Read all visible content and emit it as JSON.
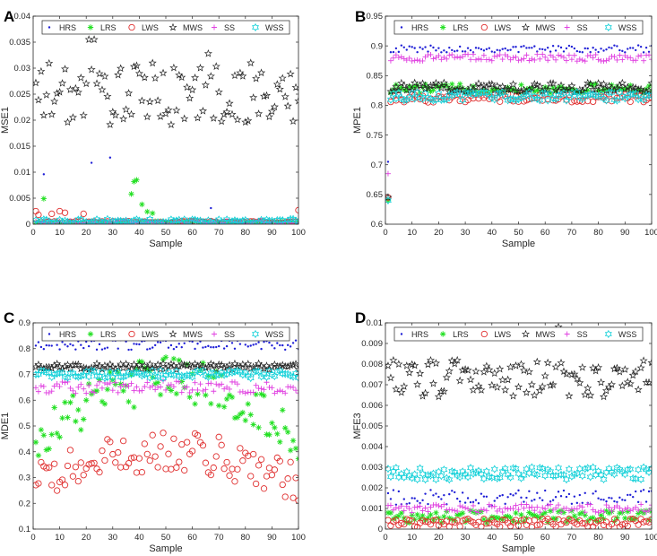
{
  "figure": {
    "panels": [
      "A",
      "B",
      "C",
      "D"
    ]
  },
  "legend_entries": [
    "HRS",
    "LRS",
    "LWS",
    "MWS",
    "SS",
    "WSS"
  ],
  "series_styles": {
    "HRS": {
      "color": "#1f1fd6",
      "marker": "dot"
    },
    "LRS": {
      "color": "#22e022",
      "marker": "asterisk"
    },
    "LWS": {
      "color": "#e03030",
      "marker": "circle"
    },
    "MWS": {
      "color": "#222222",
      "marker": "star"
    },
    "SS": {
      "color": "#e040e0",
      "marker": "plus"
    },
    "WSS": {
      "color": "#10d0d8",
      "marker": "hexagram"
    }
  },
  "chart_data": [
    {
      "panel": "A",
      "type": "scatter",
      "title": "",
      "xlabel": "Sample",
      "ylabel": "MSE1",
      "xlim": [
        0,
        100
      ],
      "ylim": [
        0,
        0.04
      ],
      "xticks": [
        0,
        10,
        20,
        30,
        40,
        50,
        60,
        70,
        80,
        90,
        100
      ],
      "yticks": [
        0,
        0.005,
        0.01,
        0.015,
        0.02,
        0.025,
        0.03,
        0.035,
        0.04
      ],
      "yticklabels": [
        "0",
        "0.005",
        "0.01",
        "0.015",
        "0.02",
        "0.025",
        "0.03",
        "0.035",
        "0.04"
      ],
      "series": [
        {
          "name": "HRS",
          "x_range": [
            1,
            100
          ],
          "base": 0.0003,
          "noise": 0.0003,
          "outliers": [
            [
              4,
              0.0096
            ],
            [
              22,
              0.0118
            ],
            [
              29,
              0.0128
            ],
            [
              67,
              0.0031
            ]
          ]
        },
        {
          "name": "LRS",
          "x_range": [
            1,
            100
          ],
          "base": 0.0003,
          "noise": 0.0003,
          "outliers": [
            [
              4,
              0.0049
            ],
            [
              37,
              0.0058
            ],
            [
              38,
              0.0082
            ],
            [
              39,
              0.0085
            ],
            [
              41,
              0.0038
            ],
            [
              43,
              0.0024
            ],
            [
              45,
              0.0021
            ]
          ]
        },
        {
          "name": "LWS",
          "x_range": [
            1,
            100
          ],
          "base": 0.0004,
          "noise": 0.0002,
          "outliers": [
            [
              1,
              0.0025
            ],
            [
              2,
              0.0018
            ],
            [
              7,
              0.002
            ],
            [
              10,
              0.0025
            ],
            [
              12,
              0.0022
            ],
            [
              19,
              0.002
            ],
            [
              100,
              0.0027
            ]
          ]
        },
        {
          "name": "MWS",
          "x_range": [
            1,
            100
          ],
          "base": 0.025,
          "noise": 0.006,
          "outliers": [
            [
              21,
              0.0355
            ],
            [
              23,
              0.0355
            ],
            [
              66,
              0.0328
            ]
          ]
        },
        {
          "name": "SS",
          "x_range": [
            1,
            100
          ],
          "base": 0.0004,
          "noise": 0.0003
        },
        {
          "name": "WSS",
          "x_range": [
            1,
            100
          ],
          "base": 0.0006,
          "noise": 0.0004
        }
      ]
    },
    {
      "panel": "B",
      "type": "scatter",
      "title": "",
      "xlabel": "Sample",
      "ylabel": "MPE1",
      "xlim": [
        0,
        100
      ],
      "ylim": [
        0.6,
        0.95
      ],
      "xticks": [
        0,
        10,
        20,
        30,
        40,
        50,
        60,
        70,
        80,
        90,
        100
      ],
      "yticks": [
        0.6,
        0.65,
        0.7,
        0.75,
        0.8,
        0.85,
        0.9,
        0.95
      ],
      "yticklabels": [
        "0.6",
        "0.65",
        "0.7",
        "0.75",
        "0.8",
        "0.85",
        "0.9",
        "0.95"
      ],
      "series": [
        {
          "name": "HRS",
          "x_range": [
            1,
            100
          ],
          "base": 0.895,
          "noise": 0.006,
          "outliers": [
            [
              1,
              0.705
            ]
          ]
        },
        {
          "name": "LRS",
          "x_range": [
            1,
            100
          ],
          "base": 0.828,
          "noise": 0.008,
          "outliers": [
            [
              1,
              0.64
            ]
          ]
        },
        {
          "name": "LWS",
          "x_range": [
            1,
            100
          ],
          "base": 0.812,
          "noise": 0.007,
          "outliers": [
            [
              1,
              0.645
            ]
          ]
        },
        {
          "name": "MWS",
          "x_range": [
            1,
            100
          ],
          "base": 0.83,
          "noise": 0.008,
          "outliers": [
            [
              1,
              0.645
            ]
          ]
        },
        {
          "name": "SS",
          "x_range": [
            1,
            100
          ],
          "base": 0.88,
          "noise": 0.006,
          "outliers": [
            [
              1,
              0.685
            ]
          ]
        },
        {
          "name": "WSS",
          "x_range": [
            1,
            100
          ],
          "base": 0.815,
          "noise": 0.007,
          "outliers": [
            [
              1,
              0.64
            ]
          ]
        }
      ]
    },
    {
      "panel": "C",
      "type": "scatter",
      "title": "",
      "xlabel": "Sample",
      "ylabel": "MDE1",
      "xlim": [
        0,
        100
      ],
      "ylim": [
        0.1,
        0.9
      ],
      "xticks": [
        0,
        10,
        20,
        30,
        40,
        50,
        60,
        70,
        80,
        90,
        100
      ],
      "yticks": [
        0.1,
        0.2,
        0.3,
        0.4,
        0.5,
        0.6,
        0.7,
        0.8,
        0.9
      ],
      "yticklabels": [
        "0.1",
        "0.2",
        "0.3",
        "0.4",
        "0.5",
        "0.6",
        "0.7",
        "0.8",
        "0.9"
      ],
      "series": [
        {
          "name": "HRS",
          "x_range": [
            1,
            100
          ],
          "base": 0.815,
          "noise": 0.02
        },
        {
          "name": "LRS",
          "x_range": [
            1,
            100
          ],
          "base": 0.56,
          "noise": 0.09,
          "trend": [
            0.45,
            0.68
          ]
        },
        {
          "name": "LWS",
          "x_range": [
            1,
            100
          ],
          "base": 0.38,
          "noise": 0.08,
          "trend": [
            0.28,
            0.4
          ]
        },
        {
          "name": "MWS",
          "x_range": [
            1,
            100
          ],
          "base": 0.73,
          "noise": 0.012
        },
        {
          "name": "SS",
          "x_range": [
            1,
            100
          ],
          "base": 0.65,
          "noise": 0.025
        },
        {
          "name": "WSS",
          "x_range": [
            1,
            100
          ],
          "base": 0.7,
          "noise": 0.015
        }
      ]
    },
    {
      "panel": "D",
      "type": "scatter",
      "title": "",
      "xlabel": "Sample",
      "ylabel": "MFE3",
      "xlim": [
        0,
        100
      ],
      "ylim": [
        0,
        0.01
      ],
      "xticks": [
        0,
        10,
        20,
        30,
        40,
        50,
        60,
        70,
        80,
        90,
        100
      ],
      "yticks": [
        0,
        0.001,
        0.002,
        0.003,
        0.004,
        0.005,
        0.006,
        0.007,
        0.008,
        0.009,
        0.01
      ],
      "yticklabels": [
        "0",
        "0.001",
        "0.002",
        "0.003",
        "0.004",
        "0.005",
        "0.006",
        "0.007",
        "0.008",
        "0.009",
        "0.01"
      ],
      "series": [
        {
          "name": "HRS",
          "x_range": [
            1,
            100
          ],
          "base": 0.0015,
          "noise": 0.0004
        },
        {
          "name": "LRS",
          "x_range": [
            1,
            100
          ],
          "base": 0.0006,
          "noise": 0.0003
        },
        {
          "name": "LWS",
          "x_range": [
            1,
            100
          ],
          "base": 0.0003,
          "noise": 0.0002
        },
        {
          "name": "MWS",
          "x_range": [
            1,
            100
          ],
          "base": 0.0073,
          "noise": 0.0009,
          "outliers": [
            [
              65,
              0.0098
            ]
          ]
        },
        {
          "name": "SS",
          "x_range": [
            1,
            100
          ],
          "base": 0.001,
          "noise": 0.0002
        },
        {
          "name": "WSS",
          "x_range": [
            1,
            100
          ],
          "base": 0.0027,
          "noise": 0.0003
        }
      ]
    }
  ]
}
